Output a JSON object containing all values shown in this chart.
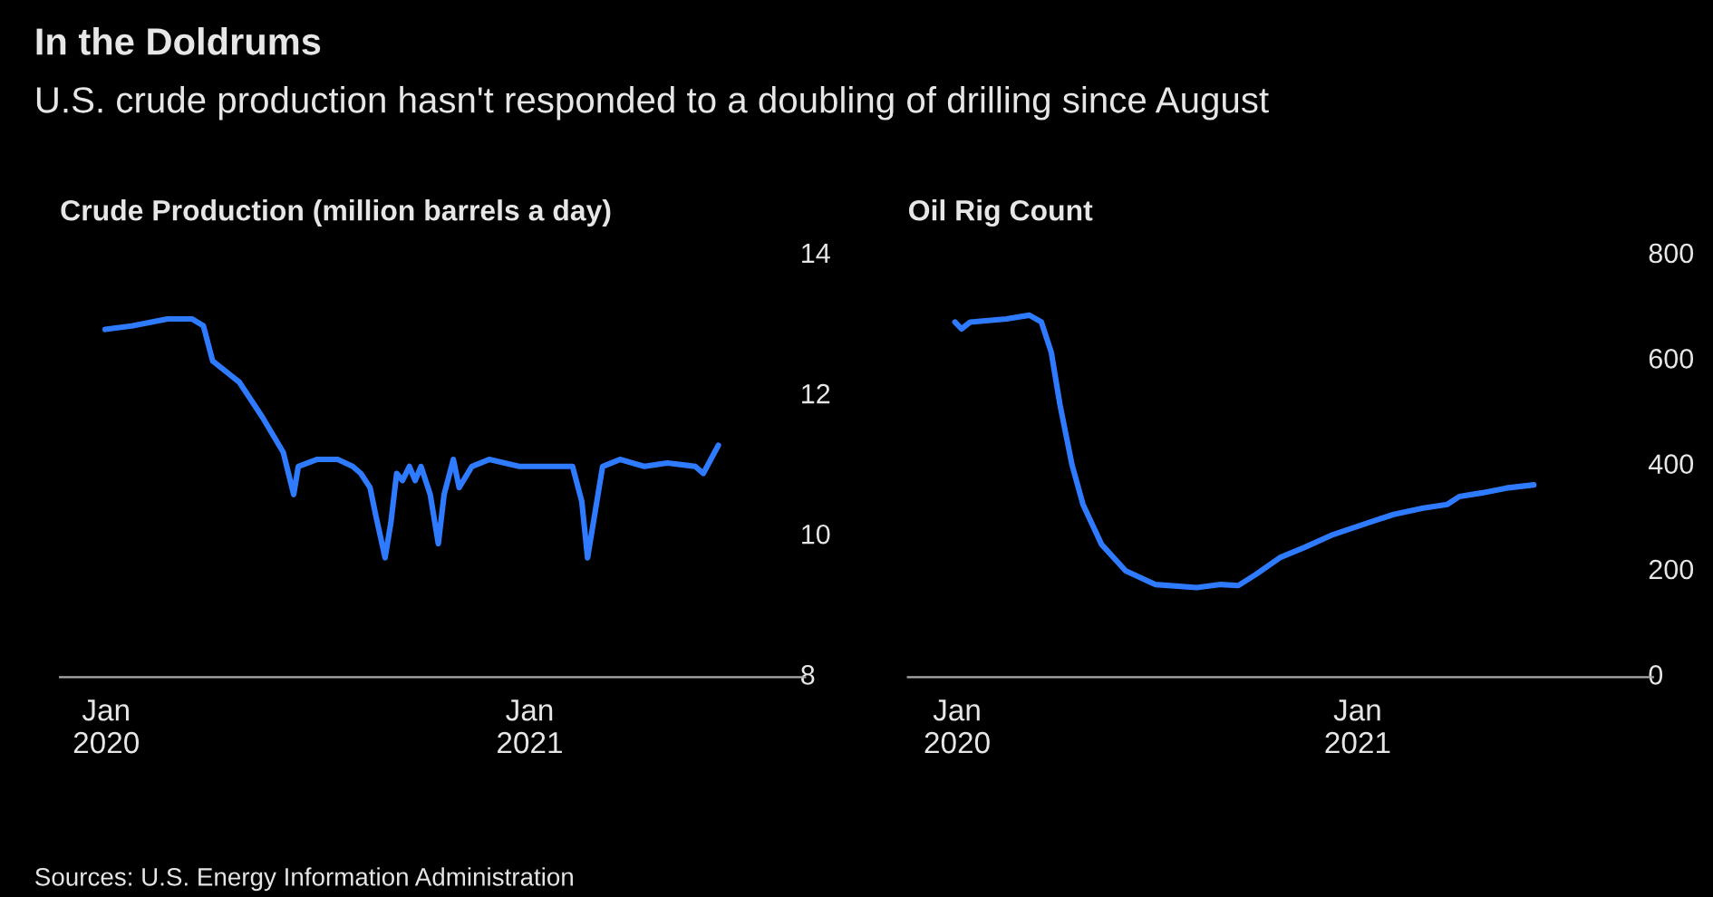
{
  "chart_data": [
    {
      "type": "line",
      "title": "Crude Production (million barrels a day)",
      "annotations": [
        "In the Doldrums",
        "U.S. crude production hasn't responded to a doubling of drilling since August",
        "Sources: U.S. Energy Information Administration"
      ],
      "x": [
        "2019-12-31",
        "2020-01-23",
        "2020-02-23",
        "2020-03-15",
        "2020-03-25",
        "2020-04-02",
        "2020-04-25",
        "2020-05-15",
        "2020-06-02",
        "2020-06-08",
        "2020-06-11",
        "2020-06-15",
        "2020-07-01",
        "2020-07-19",
        "2020-08-01",
        "2020-08-08",
        "2020-08-16",
        "2020-08-21",
        "2020-08-29",
        "2020-09-03",
        "2020-09-08",
        "2020-09-13",
        "2020-09-19",
        "2020-09-24",
        "2020-09-29",
        "2020-10-07",
        "2020-10-14",
        "2020-10-19",
        "2020-10-27",
        "2020-11-01",
        "2020-11-12",
        "2020-11-27",
        "2020-12-23",
        "2021-01-17",
        "2021-02-07",
        "2021-02-15",
        "2021-02-20",
        "2021-02-28",
        "2021-03-05",
        "2021-03-20",
        "2021-04-10",
        "2021-04-30",
        "2021-05-24",
        "2021-05-31",
        "2021-06-13"
      ],
      "series": [
        {
          "color": "#2f7bff",
          "values": [
            12.95,
            13.0,
            13.1,
            13.1,
            13.0,
            12.5,
            12.2,
            11.7,
            11.2,
            10.8,
            10.6,
            11.0,
            11.1,
            11.1,
            11.0,
            10.9,
            10.7,
            10.3,
            9.7,
            10.2,
            10.9,
            10.8,
            11.0,
            10.8,
            11.0,
            10.6,
            9.9,
            10.6,
            11.1,
            10.7,
            11.0,
            11.1,
            11.0,
            11.0,
            11.0,
            10.5,
            9.7,
            10.5,
            11.0,
            11.1,
            11.0,
            11.05,
            11.0,
            10.9,
            11.3
          ]
        }
      ],
      "xlim": [
        "2019-11-22",
        "2021-08-27"
      ],
      "ylim": [
        8,
        14
      ],
      "yticks": [
        8,
        10,
        12,
        14
      ],
      "xticks": [
        {
          "value": "2020-01-01",
          "label": "Jan\n2020"
        },
        {
          "value": "2021-01-01",
          "label": "Jan\n2021"
        }
      ],
      "grid": false,
      "legend": false
    },
    {
      "type": "line",
      "title": "Oil Rig Count",
      "x": [
        "2019-12-30",
        "2020-01-05",
        "2020-01-13",
        "2020-02-15",
        "2020-03-07",
        "2020-03-18",
        "2020-03-27",
        "2020-04-04",
        "2020-04-15",
        "2020-04-25",
        "2020-05-12",
        "2020-06-03",
        "2020-06-30",
        "2020-08-07",
        "2020-08-29",
        "2020-09-14",
        "2020-09-30",
        "2020-10-22",
        "2020-11-13",
        "2020-12-10",
        "2021-01-06",
        "2021-02-03",
        "2021-03-02",
        "2021-03-24",
        "2021-04-04",
        "2021-04-25",
        "2021-05-17",
        "2021-06-11"
      ],
      "series": [
        {
          "color": "#2f7bff",
          "values": [
            674,
            661,
            674,
            680,
            687,
            674,
            617,
            517,
            403,
            328,
            252,
            202,
            176,
            170,
            176,
            174,
            195,
            227,
            246,
            271,
            290,
            309,
            321,
            328,
            343,
            350,
            359,
            365
          ]
        }
      ],
      "xlim": [
        "2019-11-17",
        "2021-09-28"
      ],
      "ylim": [
        0,
        800
      ],
      "yticks": [
        0,
        200,
        400,
        600,
        800
      ],
      "xticks": [
        {
          "value": "2020-01-01",
          "label": "Jan\n2020"
        },
        {
          "value": "2021-01-01",
          "label": "Jan\n2021"
        }
      ],
      "grid": false,
      "legend": false
    }
  ]
}
